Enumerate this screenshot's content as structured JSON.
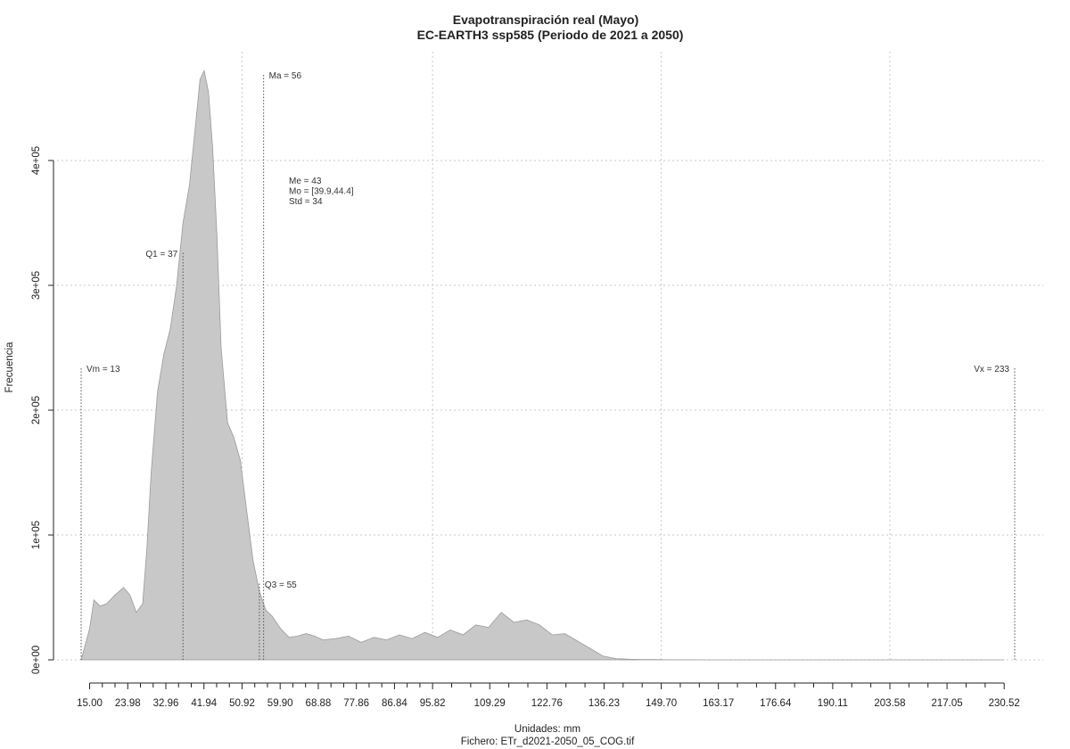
{
  "chart_data": {
    "type": "area",
    "title": "Evapotranspiración real (Mayo)",
    "subtitle": "EC-EARTH3 ssp585 (Periodo de 2021 a 2050)",
    "xlabel": "Unidades: mm",
    "ylabel": "Frecuencia",
    "caption": "Fichero: ETr_d2021-2050_05_COG.tif",
    "xlim": [
      13,
      233
    ],
    "ylim": [
      0,
      475000
    ],
    "grid": true,
    "fill_color": "#c8c8c8",
    "line_color": "#9a9a9a",
    "x_ticks": [
      "15.00",
      "23.98",
      "32.96",
      "41.94",
      "50.92",
      "59.90",
      "68.88",
      "77.86",
      "86.84",
      "95.82",
      "109.29",
      "122.76",
      "136.23",
      "149.70",
      "163.17",
      "176.64",
      "190.11",
      "203.58",
      "217.05",
      "230.52"
    ],
    "y_ticks": [
      {
        "value": 0,
        "label": "0e+00"
      },
      {
        "value": 100000,
        "label": "1e+05"
      },
      {
        "value": 200000,
        "label": "2e+05"
      },
      {
        "value": 300000,
        "label": "3e+05"
      },
      {
        "value": 400000,
        "label": "4e+05"
      }
    ],
    "x": [
      13,
      15,
      16,
      17.5,
      19,
      21,
      23,
      24.5,
      26,
      27.5,
      28.5,
      29.5,
      31,
      32.5,
      34,
      35.5,
      37,
      38.5,
      40,
      41,
      42,
      43,
      44,
      45,
      46,
      47.5,
      49,
      50.5,
      52,
      53.5,
      55,
      56.5,
      58,
      60,
      62,
      64,
      66,
      68,
      70,
      73,
      76,
      79,
      82,
      85,
      88,
      91,
      94,
      97,
      100,
      103,
      106,
      109,
      112,
      115,
      118,
      121,
      124,
      127,
      130,
      133,
      136,
      139,
      142,
      145,
      148,
      151,
      154,
      157,
      160,
      163,
      166,
      170,
      180,
      200,
      220,
      230.5
    ],
    "y": [
      0,
      25000,
      48000,
      43000,
      45000,
      52000,
      58000,
      52000,
      38000,
      45000,
      90000,
      150000,
      215000,
      245000,
      265000,
      300000,
      350000,
      380000,
      430000,
      465000,
      472000,
      455000,
      410000,
      340000,
      250000,
      190000,
      178000,
      160000,
      120000,
      80000,
      55000,
      40000,
      35000,
      25000,
      18000,
      19000,
      21000,
      19000,
      16000,
      17000,
      19000,
      14000,
      18000,
      16000,
      20000,
      17000,
      22000,
      18000,
      24000,
      20000,
      28000,
      26000,
      38000,
      30000,
      32000,
      28000,
      20000,
      21000,
      15000,
      9000,
      3000,
      1000,
      500,
      300,
      200,
      100,
      80,
      50,
      30,
      20,
      10,
      5,
      0,
      0,
      0,
      0
    ],
    "vlines": [
      {
        "label": "Vm = 13",
        "x": 13,
        "y_top": 235000,
        "label_side": "right"
      },
      {
        "label": "Q1 = 37",
        "x": 37,
        "y_top": 327000,
        "label_side": "left"
      },
      {
        "label": "Q3 = 55",
        "x": 55,
        "y_top": 62000,
        "label_side": "right"
      },
      {
        "label": "Ma = 56",
        "x": 56,
        "y_top": 470000,
        "label_side": "right"
      },
      {
        "label": "Vx = 233",
        "x": 233,
        "y_top": 235000,
        "label_side": "left"
      }
    ],
    "stats_box": [
      "Me = 43",
      "Mo = [39.9,44.4]",
      "Std = 34"
    ]
  }
}
